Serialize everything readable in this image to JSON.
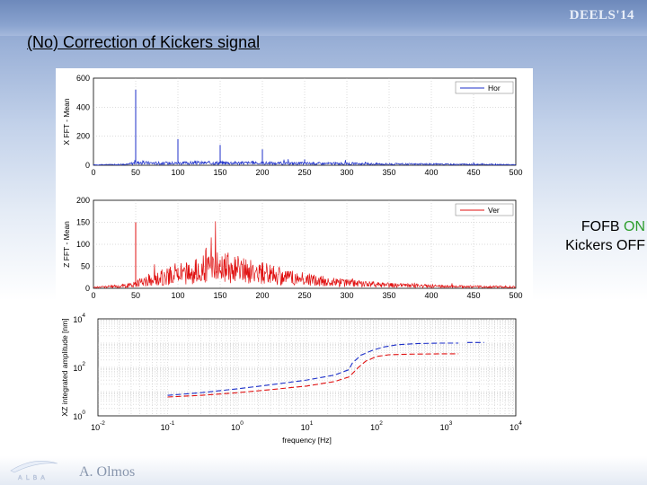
{
  "header": {
    "conference": "DEELS'14",
    "title": "(No) Correction of Kickers signal"
  },
  "side_note": {
    "line1_prefix": "FOFB",
    "line1_status": "ON",
    "line2": "Kickers OFF",
    "status_color": "#2e9e2e"
  },
  "footer": {
    "author": "A. Olmos",
    "logo_text": "ALBA"
  },
  "chart_data": [
    {
      "type": "line",
      "ylabel": "X FFT - Mean",
      "xlim": [
        0,
        500
      ],
      "ylim": [
        0,
        600
      ],
      "xticks": [
        0,
        50,
        100,
        150,
        200,
        250,
        300,
        350,
        400,
        450,
        500
      ],
      "yticks": [
        0,
        200,
        400,
        600
      ],
      "grid": true,
      "legend_position": "top-right",
      "series": [
        {
          "name": "Hor",
          "color": "#1c2fc8",
          "baseline": [
            [
              0,
              3
            ],
            [
              40,
              6
            ],
            [
              50,
              18
            ],
            [
              80,
              14
            ],
            [
              120,
              16
            ],
            [
              160,
              17
            ],
            [
              200,
              15
            ],
            [
              240,
              13
            ],
            [
              280,
              12
            ],
            [
              320,
              10
            ],
            [
              360,
              8
            ],
            [
              400,
              7
            ],
            [
              440,
              6
            ],
            [
              500,
              4
            ]
          ],
          "peaks": [
            [
              50,
              520
            ],
            [
              100,
              180
            ],
            [
              150,
              140
            ],
            [
              200,
              110
            ],
            [
              250,
              40
            ],
            [
              300,
              20
            ],
            [
              450,
              20
            ],
            [
              460,
              14
            ]
          ]
        }
      ]
    },
    {
      "type": "line",
      "ylabel": "Z FFT - Mean",
      "xlim": [
        0,
        500
      ],
      "ylim": [
        0,
        200
      ],
      "xticks": [
        0,
        50,
        100,
        150,
        200,
        250,
        300,
        350,
        400,
        450,
        500
      ],
      "yticks": [
        0,
        50,
        100,
        150,
        200
      ],
      "grid": true,
      "legend_position": "top-right",
      "series": [
        {
          "name": "Ver",
          "color": "#e01010",
          "baseline": [
            [
              0,
              2
            ],
            [
              40,
              6
            ],
            [
              60,
              16
            ],
            [
              90,
              28
            ],
            [
              120,
              38
            ],
            [
              145,
              50
            ],
            [
              170,
              44
            ],
            [
              200,
              34
            ],
            [
              230,
              26
            ],
            [
              260,
              18
            ],
            [
              300,
              12
            ],
            [
              340,
              8
            ],
            [
              380,
              6
            ],
            [
              420,
              4
            ],
            [
              500,
              3
            ]
          ],
          "peaks": [
            [
              50,
              150
            ],
            [
              100,
              46
            ],
            [
              150,
              64
            ],
            [
              200,
              40
            ]
          ]
        }
      ]
    },
    {
      "type": "line",
      "ylabel": "XZ integrated amplitude [nm]",
      "xlabel": "frequency [Hz]",
      "xscale": "log",
      "yscale": "log",
      "xlim": [
        0.01,
        10000
      ],
      "ylim": [
        1,
        10000
      ],
      "xtick_labels": [
        {
          "base": "10",
          "exp": "-2",
          "value": 0.01
        },
        {
          "base": "10",
          "exp": "-1",
          "value": 0.1
        },
        {
          "base": "10",
          "exp": "0",
          "value": 1
        },
        {
          "base": "10",
          "exp": "1",
          "value": 10
        },
        {
          "base": "10",
          "exp": "2",
          "value": 100
        },
        {
          "base": "10",
          "exp": "3",
          "value": 1000
        },
        {
          "base": "10",
          "exp": "4",
          "value": 10000
        }
      ],
      "ytick_labels": [
        {
          "base": "10",
          "exp": "0",
          "value": 1
        },
        {
          "base": "10",
          "exp": "2",
          "value": 100
        },
        {
          "base": "10",
          "exp": "4",
          "value": 10000
        }
      ],
      "grid": true,
      "series": [
        {
          "color": "#1c2fc8",
          "dash": "6,3",
          "points": [
            [
              0.1,
              7
            ],
            [
              0.3,
              9
            ],
            [
              1,
              13
            ],
            [
              3,
              19
            ],
            [
              10,
              30
            ],
            [
              25,
              48
            ],
            [
              40,
              80
            ],
            [
              45,
              150
            ],
            [
              60,
              320
            ],
            [
              90,
              520
            ],
            [
              130,
              700
            ],
            [
              200,
              860
            ],
            [
              400,
              960
            ],
            [
              800,
              1000
            ],
            [
              1500,
              1000
            ]
          ],
          "points2": [
            [
              2000,
              1060
            ],
            [
              3500,
              1060
            ]
          ]
        },
        {
          "color": "#e01010",
          "dash": "6,3",
          "points": [
            [
              0.1,
              6
            ],
            [
              0.3,
              7
            ],
            [
              1,
              9
            ],
            [
              3,
              12
            ],
            [
              10,
              17
            ],
            [
              25,
              26
            ],
            [
              40,
              40
            ],
            [
              45,
              55
            ],
            [
              55,
              100
            ],
            [
              70,
              180
            ],
            [
              100,
              280
            ],
            [
              150,
              330
            ],
            [
              300,
              350
            ],
            [
              800,
              360
            ],
            [
              1500,
              360
            ]
          ]
        }
      ]
    }
  ]
}
